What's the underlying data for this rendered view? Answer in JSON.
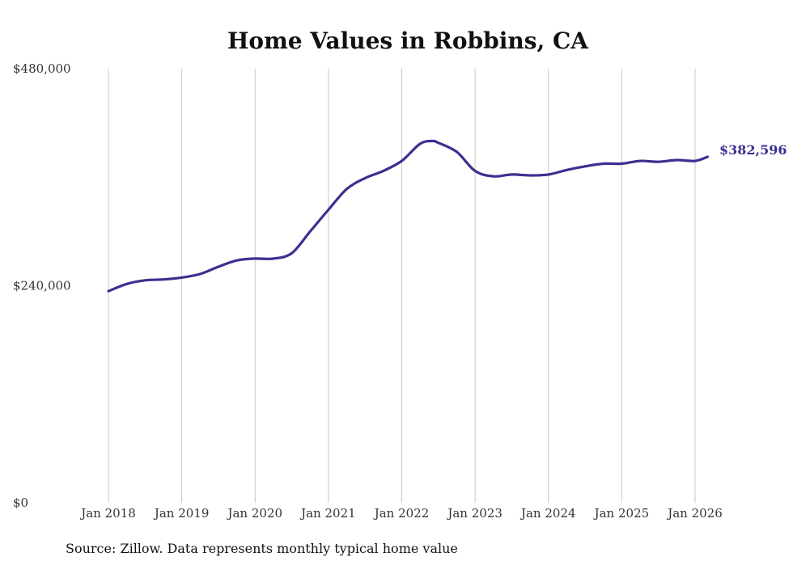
{
  "chart_data": {
    "type": "line",
    "title": "Home Values in Robbins, CA",
    "xlabel": "",
    "ylabel": "",
    "ylim": [
      0,
      480000
    ],
    "y_ticks": [
      0,
      240000,
      480000
    ],
    "y_tick_labels": [
      "$0",
      "$240,000",
      "$480,000"
    ],
    "x_tick_labels": [
      "Jan 2018",
      "Jan 2019",
      "Jan 2020",
      "Jan 2021",
      "Jan 2022",
      "Jan 2023",
      "Jan 2024",
      "Jan 2025",
      "Jan 2026"
    ],
    "x_tick_values": [
      2018,
      2019,
      2020,
      2021,
      2022,
      2023,
      2024,
      2025,
      2026
    ],
    "xlim": [
      2018,
      2026.2
    ],
    "grid": "vertical",
    "series": [
      {
        "name": "Typical home value",
        "color": "#3a3190",
        "x": [
          2018.0,
          2018.25,
          2018.5,
          2018.75,
          2019.0,
          2019.25,
          2019.5,
          2019.75,
          2020.0,
          2020.25,
          2020.5,
          2020.75,
          2021.0,
          2021.25,
          2021.5,
          2021.75,
          2022.0,
          2022.25,
          2022.42,
          2022.5,
          2022.75,
          2023.0,
          2023.25,
          2023.5,
          2023.75,
          2024.0,
          2024.25,
          2024.5,
          2024.75,
          2025.0,
          2025.25,
          2025.5,
          2025.75,
          2026.0,
          2026.17
        ],
        "values": [
          234000,
          242000,
          246000,
          247000,
          249000,
          253000,
          261000,
          268000,
          270000,
          270000,
          276000,
          300000,
          324000,
          347000,
          359000,
          367000,
          378000,
          397000,
          400000,
          398000,
          388000,
          367000,
          361000,
          363000,
          362000,
          363000,
          368000,
          372000,
          375000,
          375000,
          378000,
          377000,
          379000,
          378000,
          382596
        ]
      }
    ],
    "end_label": "$382,596",
    "source_note": "Source: Zillow. Data represents monthly typical home value"
  }
}
